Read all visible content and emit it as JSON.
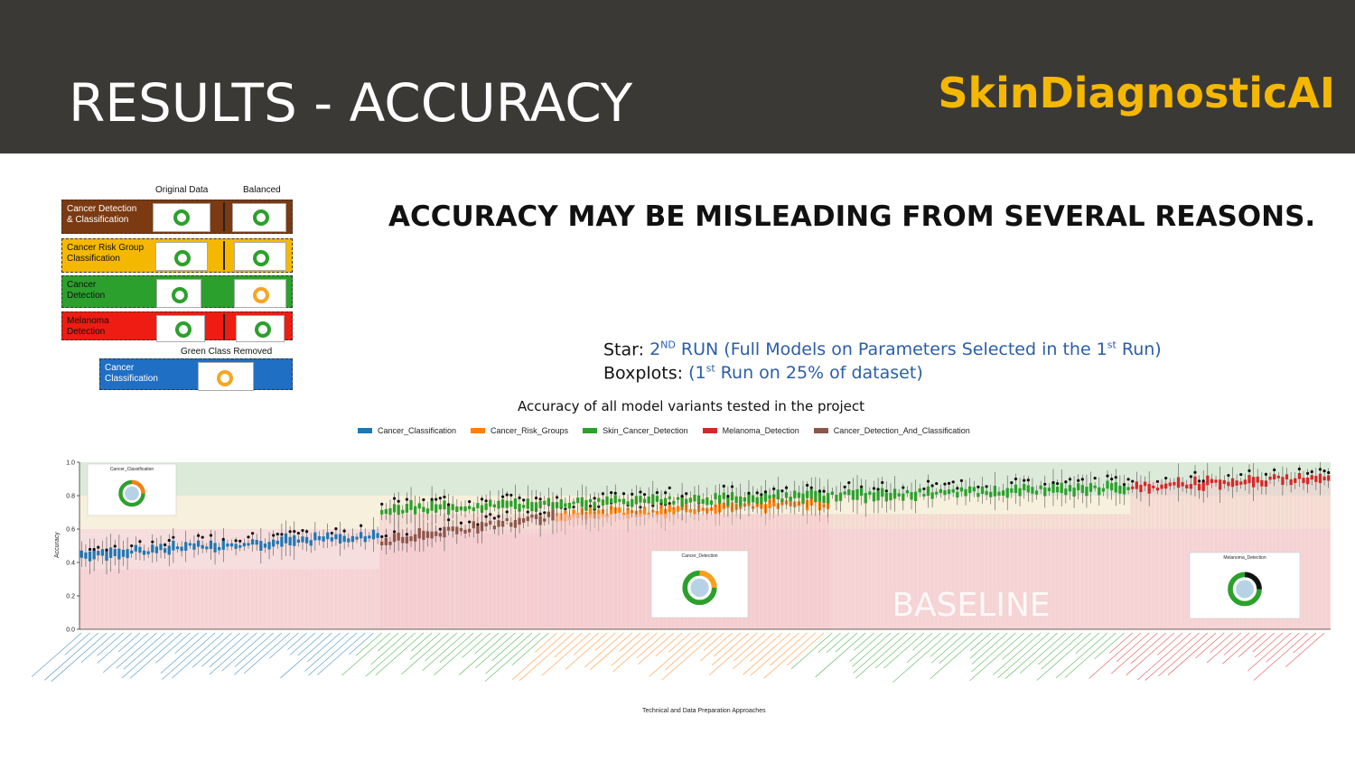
{
  "slide": {
    "title": "RESULTS - ACCURACY",
    "logo": "SkinDiagnosticAI",
    "headline": "ACCURACY MAY BE MISLEADING FROM SEVERAL REASONS.",
    "star_line": {
      "prefix": "Star: ",
      "run_num": "2",
      "run_sup": "ND",
      "run_text": " RUN (Full Models on Parameters Selected in the 1",
      "run_sup2": "st",
      "run_end": " Run)"
    },
    "box_line": {
      "prefix": "Boxplots: ",
      "open": "(1",
      "sup": "st",
      "rest": " Run on 25% of dataset)"
    }
  },
  "categories_panel": {
    "col_original": "Original Data",
    "col_balanced": "Balanced",
    "items": [
      {
        "label": "Cancer Detection\n& Classification",
        "color": "#7b3a12",
        "text_color": "#ffffff"
      },
      {
        "label": "Cancer Risk Group\nClassification",
        "color": "#f5b800",
        "text_color": "#111111"
      },
      {
        "label": "Cancer\nDetection",
        "color": "#2ca02c",
        "text_color": "#111111"
      },
      {
        "label": "Melanoma\nDetection",
        "color": "#ee1c12",
        "text_color": "#111111"
      }
    ],
    "green_removed_label": "Green Class Removed",
    "extra": {
      "label": "Cancer\nClassification",
      "color": "#1f6fc5",
      "text_color": "#ffffff"
    }
  },
  "chart_data": {
    "type": "box",
    "title": "Accuracy of all model variants tested in the project",
    "xlabel": "Technical and Data Preparation Approaches",
    "ylabel": "Accuracy",
    "ylim": [
      0.0,
      1.0
    ],
    "yticks": [
      "0.0",
      "0.2",
      "0.4",
      "0.6",
      "0.8",
      "1.0"
    ],
    "series": [
      {
        "name": "Cancer_Classification",
        "color": "#1f77b4",
        "range": [
          0.0,
          0.24
        ],
        "median_from": 0.45,
        "median_to": 0.56,
        "baseline": 0.36
      },
      {
        "name": "Cancer_Risk_Groups",
        "color": "#ff7f0e",
        "range": [
          0.38,
          0.6
        ],
        "median_from": 0.68,
        "median_to": 0.76,
        "baseline": 0.69
      },
      {
        "name": "Skin_Cancer_Detection",
        "color": "#2ca02c",
        "range": [
          0.24,
          0.84
        ],
        "median_from": 0.72,
        "median_to": 0.85,
        "baseline": 0.69
      },
      {
        "name": "Melanoma_Detection",
        "color": "#d62728",
        "range": [
          0.84,
          1.0
        ],
        "median_from": 0.85,
        "median_to": 0.91,
        "baseline": 0.89
      },
      {
        "name": "Cancer_Detection_And_Classification",
        "color": "#8c564b",
        "range": [
          0.24,
          0.38
        ],
        "median_from": 0.52,
        "median_to": 0.68,
        "baseline": 0.57
      }
    ],
    "annotation": "BASELINE",
    "inset_titles": [
      "Cancer_Classification",
      "Cancer_Detection",
      "Melanoma_Detection"
    ]
  }
}
